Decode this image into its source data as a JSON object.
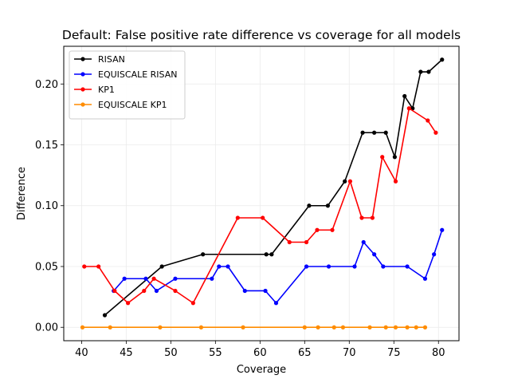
{
  "chart_data": {
    "type": "line",
    "title": "Default: False positive rate difference vs coverage for all models",
    "xlabel": "Coverage",
    "ylabel": "Difference",
    "xlim": [
      38.0,
      82.3
    ],
    "ylim": [
      -0.011,
      0.231
    ],
    "xticks": [
      40,
      45,
      50,
      55,
      60,
      65,
      70,
      75,
      80
    ],
    "yticks": [
      0.0,
      0.05,
      0.1,
      0.15,
      0.2
    ],
    "ytick_labels": [
      "0.00",
      "0.05",
      "0.10",
      "0.15",
      "0.20"
    ],
    "grid": true,
    "legend_position": "top-left",
    "series": [
      {
        "name": "RISAN",
        "color": "#000000",
        "x": [
          42.6,
          49.0,
          53.6,
          60.7,
          61.3,
          65.5,
          67.6,
          69.5,
          71.5,
          72.8,
          74.1,
          75.1,
          76.2,
          77.1,
          78.0,
          78.9,
          80.4
        ],
        "y": [
          0.01,
          0.05,
          0.06,
          0.06,
          0.06,
          0.1,
          0.1,
          0.12,
          0.16,
          0.16,
          0.16,
          0.14,
          0.19,
          0.18,
          0.21,
          0.21,
          0.22
        ]
      },
      {
        "name": "EQUISCALE RISAN",
        "color": "#0000ff",
        "x": [
          43.6,
          44.8,
          47.2,
          48.4,
          50.5,
          54.6,
          55.4,
          56.4,
          58.3,
          60.6,
          61.8,
          65.2,
          67.7,
          70.6,
          71.6,
          72.8,
          73.8,
          76.5,
          78.5,
          79.5,
          80.4
        ],
        "y": [
          0.03,
          0.04,
          0.04,
          0.03,
          0.04,
          0.04,
          0.05,
          0.05,
          0.03,
          0.03,
          0.02,
          0.05,
          0.05,
          0.05,
          0.07,
          0.06,
          0.05,
          0.05,
          0.04,
          0.06,
          0.08
        ]
      },
      {
        "name": "KP1",
        "color": "#ff0000",
        "x": [
          40.3,
          41.9,
          43.7,
          45.2,
          47.0,
          48.1,
          50.5,
          52.5,
          57.5,
          60.3,
          63.3,
          65.2,
          66.4,
          68.1,
          70.1,
          71.4,
          72.6,
          73.7,
          75.2,
          76.7,
          78.8,
          79.7
        ],
        "y": [
          0.05,
          0.05,
          0.03,
          0.02,
          0.03,
          0.04,
          0.03,
          0.02,
          0.09,
          0.09,
          0.07,
          0.07,
          0.08,
          0.08,
          0.12,
          0.09,
          0.09,
          0.14,
          0.12,
          0.18,
          0.17,
          0.16
        ]
      },
      {
        "name": "EQUISCALE KP1",
        "color": "#ff8c00",
        "x": [
          40.1,
          43.2,
          48.8,
          53.4,
          58.1,
          65.0,
          66.5,
          68.3,
          69.3,
          72.3,
          74.1,
          75.2,
          76.5,
          77.5,
          78.5
        ],
        "y": [
          0.0,
          0.0,
          0.0,
          0.0,
          0.0,
          0.0,
          0.0,
          0.0,
          0.0,
          0.0,
          0.0,
          0.0,
          0.0,
          0.0,
          0.0
        ]
      }
    ]
  }
}
